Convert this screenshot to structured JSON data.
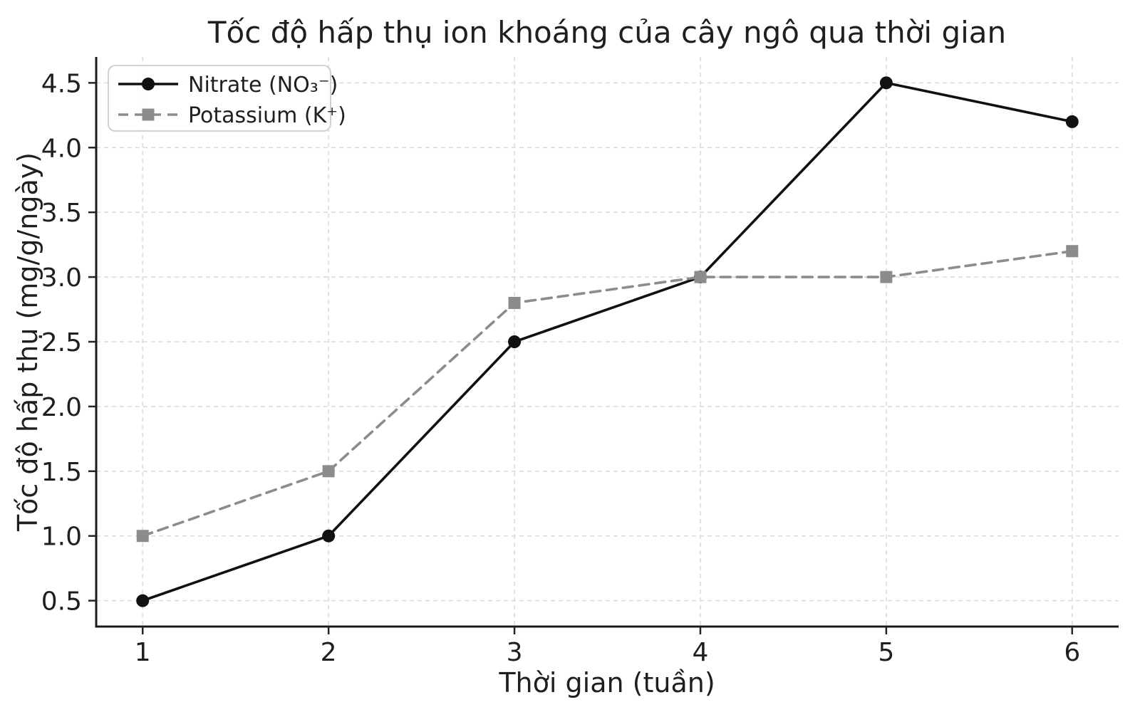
{
  "chart_data": {
    "type": "line",
    "title": "Tốc độ hấp thụ ion khoáng của cây ngô qua thời gian",
    "xlabel": "Thời gian (tuần)",
    "ylabel": "Tốc độ hấp thụ (mg/g/ngày)",
    "x": [
      1,
      2,
      3,
      4,
      5,
      6
    ],
    "xtick_labels": [
      "1",
      "2",
      "3",
      "4",
      "5",
      "6"
    ],
    "yticks": [
      0.5,
      1.0,
      1.5,
      2.0,
      2.5,
      3.0,
      3.5,
      4.0,
      4.5
    ],
    "ytick_labels": [
      "0.5",
      "1.0",
      "1.5",
      "2.0",
      "2.5",
      "3.0",
      "3.5",
      "4.0",
      "4.5"
    ],
    "xlim": [
      0.75,
      6.25
    ],
    "ylim": [
      0.3,
      4.7
    ],
    "grid": true,
    "legend_position": "upper-left",
    "series": [
      {
        "name": "Nitrate (NO₃⁻)",
        "values": [
          0.5,
          1.0,
          2.5,
          3.0,
          4.5,
          4.2
        ],
        "color": "#111111",
        "marker": "circle",
        "line_style": "solid"
      },
      {
        "name": "Potassium (K⁺)",
        "values": [
          1.0,
          1.5,
          2.8,
          3.0,
          3.0,
          3.2
        ],
        "color": "#8c8c8c",
        "marker": "square",
        "line_style": "dashed"
      }
    ],
    "colors": {
      "grid": "#dcdcdc",
      "spine": "#1a1a1a",
      "tick": "#262626",
      "text": "#1f1f1f",
      "legend_border": "#cccccc",
      "legend_background": "#ffffff"
    }
  }
}
